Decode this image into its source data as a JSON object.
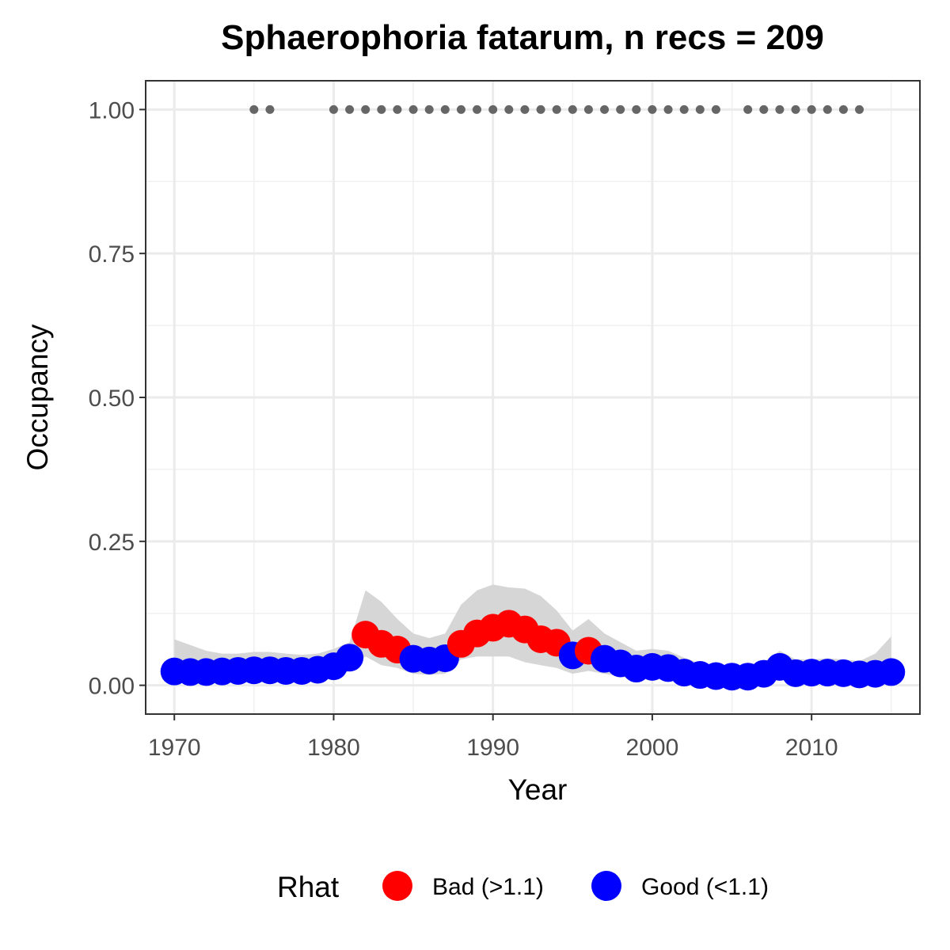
{
  "chart_data": {
    "type": "scatter",
    "title": "Sphaerophoria fatarum, n recs = 209",
    "xlabel": "Year",
    "ylabel": "Occupancy",
    "xlim": [
      1968.2,
      2016.8
    ],
    "ylim": [
      -0.05,
      1.05
    ],
    "x_ticks": [
      1970,
      1980,
      1990,
      2000,
      2010
    ],
    "x_tick_labels": [
      "1970",
      "1980",
      "1990",
      "2000",
      "2010"
    ],
    "x_minor_ticks": [
      1975,
      1985,
      1995,
      2005,
      2015
    ],
    "y_ticks": [
      0,
      0.25,
      0.5,
      0.75,
      1.0
    ],
    "y_tick_labels": [
      "0.00",
      "0.25",
      "0.50",
      "0.75",
      "1.00"
    ],
    "y_minor_ticks": [
      0.125,
      0.375,
      0.625,
      0.875
    ],
    "grid": true,
    "legend": {
      "title": "Rhat",
      "position": "bottom",
      "entries": [
        {
          "label": "Bad (>1.1)",
          "color": "#ff0000"
        },
        {
          "label": "Good (<1.1)",
          "color": "#0000ff"
        }
      ]
    },
    "colors": {
      "bad": "#ff0000",
      "good": "#0000ff",
      "records": "#666666",
      "ribbon": "#d6d6d6"
    },
    "series": [
      {
        "type": "line-points",
        "x": [
          1970,
          1971,
          1972,
          1973,
          1974,
          1975,
          1976,
          1977,
          1978,
          1979,
          1980,
          1981,
          1982,
          1983,
          1984,
          1985,
          1986,
          1987,
          1988,
          1989,
          1990,
          1991,
          1992,
          1993,
          1994,
          1995,
          1996,
          1997,
          1998,
          1999,
          2000,
          2001,
          2002,
          2003,
          2004,
          2005,
          2006,
          2007,
          2008,
          2009,
          2010,
          2011,
          2012,
          2013,
          2014,
          2015
        ],
        "y": [
          0.024,
          0.023,
          0.023,
          0.024,
          0.025,
          0.026,
          0.026,
          0.025,
          0.025,
          0.027,
          0.033,
          0.048,
          0.088,
          0.072,
          0.062,
          0.046,
          0.043,
          0.047,
          0.072,
          0.09,
          0.1,
          0.107,
          0.097,
          0.08,
          0.074,
          0.052,
          0.06,
          0.046,
          0.038,
          0.029,
          0.032,
          0.03,
          0.022,
          0.018,
          0.016,
          0.015,
          0.015,
          0.02,
          0.032,
          0.021,
          0.022,
          0.022,
          0.021,
          0.019,
          0.02,
          0.023
        ],
        "rhat": [
          "Good",
          "Good",
          "Good",
          "Good",
          "Good",
          "Good",
          "Good",
          "Good",
          "Good",
          "Good",
          "Good",
          "Good",
          "Bad",
          "Bad",
          "Bad",
          "Good",
          "Good",
          "Good",
          "Bad",
          "Bad",
          "Bad",
          "Bad",
          "Bad",
          "Bad",
          "Bad",
          "Good",
          "Bad",
          "Good",
          "Good",
          "Good",
          "Good",
          "Good",
          "Good",
          "Good",
          "Good",
          "Good",
          "Good",
          "Good",
          "Good",
          "Good",
          "Good",
          "Good",
          "Good",
          "Good",
          "Good",
          "Good"
        ],
        "lower": [
          0.005,
          0.006,
          0.007,
          0.007,
          0.008,
          0.009,
          0.009,
          0.009,
          0.009,
          0.01,
          0.013,
          0.025,
          0.05,
          0.035,
          0.03,
          0.02,
          0.018,
          0.02,
          0.045,
          0.05,
          0.05,
          0.05,
          0.04,
          0.035,
          0.03,
          0.02,
          0.025,
          0.02,
          0.015,
          0.01,
          0.012,
          0.01,
          0.006,
          0.004,
          0.003,
          0.003,
          0.003,
          0.005,
          0.01,
          0.005,
          0.005,
          0.005,
          0.004,
          0.004,
          0.004,
          0.003
        ],
        "upper": [
          0.08,
          0.07,
          0.06,
          0.055,
          0.055,
          0.058,
          0.058,
          0.055,
          0.053,
          0.055,
          0.063,
          0.075,
          0.165,
          0.145,
          0.115,
          0.09,
          0.082,
          0.09,
          0.14,
          0.165,
          0.175,
          0.17,
          0.168,
          0.155,
          0.13,
          0.095,
          0.115,
          0.09,
          0.075,
          0.06,
          0.063,
          0.06,
          0.048,
          0.038,
          0.034,
          0.033,
          0.035,
          0.04,
          0.06,
          0.045,
          0.045,
          0.047,
          0.045,
          0.042,
          0.055,
          0.085
        ]
      },
      {
        "type": "records",
        "x": [
          1975,
          1976,
          1980,
          1981,
          1982,
          1983,
          1984,
          1985,
          1986,
          1987,
          1988,
          1989,
          1990,
          1991,
          1992,
          1993,
          1994,
          1995,
          1996,
          1997,
          1998,
          1999,
          2000,
          2001,
          2002,
          2003,
          2004,
          2006,
          2007,
          2008,
          2009,
          2010,
          2011,
          2012,
          2013
        ],
        "y": 1.0
      }
    ]
  }
}
